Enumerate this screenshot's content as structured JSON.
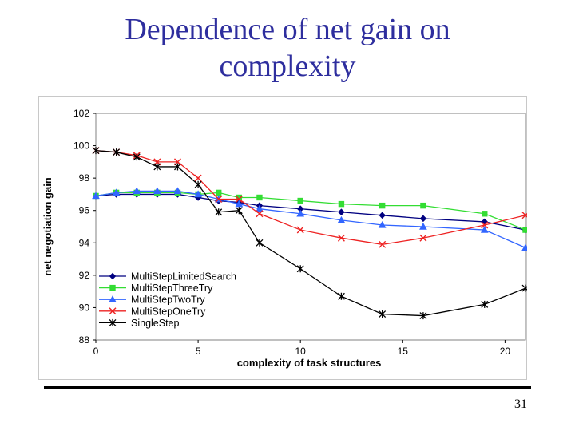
{
  "slide": {
    "title_line1": "Dependence of net gain on",
    "title_line2": "complexity",
    "page_number": "31"
  },
  "chart_data": {
    "type": "line",
    "title": "",
    "xlabel": "complexity of task structures",
    "ylabel": "net negotiation gain",
    "xlim": [
      0,
      21
    ],
    "ylim": [
      88,
      102
    ],
    "xticks": [
      0,
      5,
      10,
      15,
      20
    ],
    "yticks": [
      88,
      90,
      92,
      94,
      96,
      98,
      100,
      102
    ],
    "grid": false,
    "legend_position": "lower-left",
    "series": [
      {
        "name": "MultiStepLimitedSearch",
        "color": "#000080",
        "marker": "diamond",
        "points": [
          [
            0,
            96.9
          ],
          [
            1,
            97.0
          ],
          [
            2,
            97.0
          ],
          [
            3,
            97.0
          ],
          [
            4,
            97.0
          ],
          [
            5,
            96.8
          ],
          [
            6,
            96.6
          ],
          [
            7,
            96.5
          ],
          [
            8,
            96.3
          ],
          [
            10,
            96.1
          ],
          [
            12,
            95.9
          ],
          [
            14,
            95.7
          ],
          [
            16,
            95.5
          ],
          [
            19,
            95.3
          ],
          [
            21,
            94.8
          ]
        ]
      },
      {
        "name": "MultiStepThreeTry",
        "color": "#33dd33",
        "marker": "square",
        "points": [
          [
            0,
            96.9
          ],
          [
            1,
            97.1
          ],
          [
            2,
            97.1
          ],
          [
            3,
            97.1
          ],
          [
            4,
            97.1
          ],
          [
            5,
            97.0
          ],
          [
            6,
            97.1
          ],
          [
            7,
            96.8
          ],
          [
            8,
            96.8
          ],
          [
            10,
            96.6
          ],
          [
            12,
            96.4
          ],
          [
            14,
            96.3
          ],
          [
            16,
            96.3
          ],
          [
            19,
            95.8
          ],
          [
            21,
            94.8
          ]
        ]
      },
      {
        "name": "MultiStepTwoTry",
        "color": "#3366ff",
        "marker": "triangle",
        "points": [
          [
            0,
            96.9
          ],
          [
            1,
            97.1
          ],
          [
            2,
            97.2
          ],
          [
            3,
            97.2
          ],
          [
            4,
            97.2
          ],
          [
            5,
            97.0
          ],
          [
            6,
            96.7
          ],
          [
            7,
            96.4
          ],
          [
            8,
            96.1
          ],
          [
            10,
            95.8
          ],
          [
            12,
            95.4
          ],
          [
            14,
            95.1
          ],
          [
            16,
            95.0
          ],
          [
            19,
            94.8
          ],
          [
            21,
            93.7
          ]
        ]
      },
      {
        "name": "MultiStepOneTry",
        "color": "#ee2222",
        "marker": "x",
        "points": [
          [
            0,
            99.7
          ],
          [
            1,
            99.6
          ],
          [
            2,
            99.4
          ],
          [
            3,
            99.0
          ],
          [
            4,
            99.0
          ],
          [
            5,
            98.0
          ],
          [
            6,
            96.7
          ],
          [
            7,
            96.7
          ],
          [
            8,
            95.8
          ],
          [
            10,
            94.8
          ],
          [
            12,
            94.3
          ],
          [
            14,
            93.9
          ],
          [
            16,
            94.3
          ],
          [
            19,
            95.1
          ],
          [
            21,
            95.7
          ]
        ]
      },
      {
        "name": "SingleStep",
        "color": "#000000",
        "marker": "star",
        "points": [
          [
            0,
            99.7
          ],
          [
            1,
            99.6
          ],
          [
            2,
            99.3
          ],
          [
            3,
            98.7
          ],
          [
            4,
            98.7
          ],
          [
            5,
            97.6
          ],
          [
            6,
            95.9
          ],
          [
            7,
            96.0
          ],
          [
            8,
            94.0
          ],
          [
            10,
            92.4
          ],
          [
            12,
            90.7
          ],
          [
            14,
            89.6
          ],
          [
            16,
            89.5
          ],
          [
            19,
            90.2
          ],
          [
            21,
            91.2
          ]
        ]
      }
    ]
  }
}
